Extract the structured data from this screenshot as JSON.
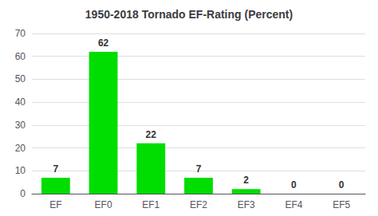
{
  "chart_data": {
    "type": "bar",
    "title": "1950-2018 Tornado EF-Rating (Percent)",
    "categories": [
      "EF",
      "EF0",
      "EF1",
      "EF2",
      "EF3",
      "EF4",
      "EF5"
    ],
    "values": [
      7,
      62,
      22,
      7,
      2,
      0,
      0
    ],
    "color": "#00dd00",
    "ylim": [
      0,
      70
    ],
    "yticks": [
      0,
      10,
      20,
      30,
      40,
      50,
      60,
      70
    ],
    "grid": true,
    "data_labels": true
  }
}
